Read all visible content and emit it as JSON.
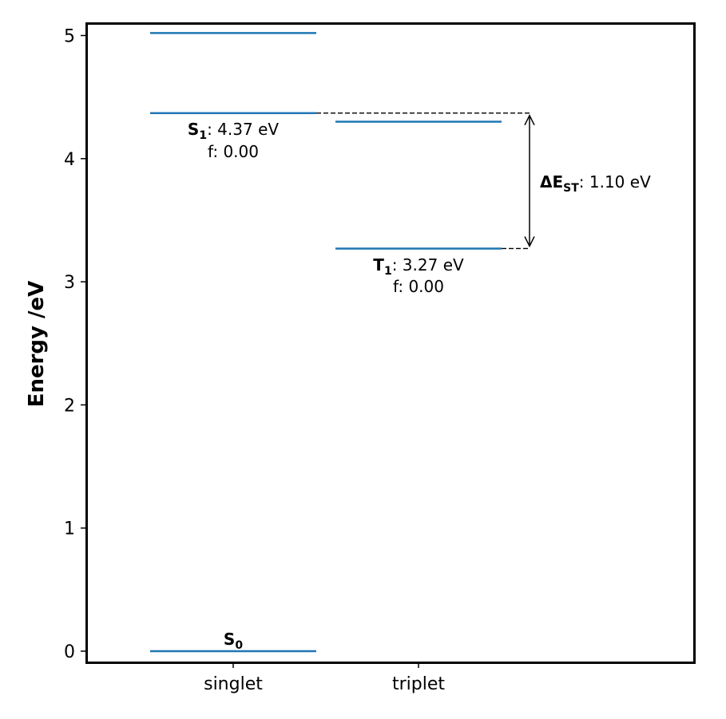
{
  "chart_data": {
    "type": "energy-level-diagram",
    "ylabel": "Energy /eV",
    "xlabel": "",
    "ylim": [
      -0.09,
      5.11
    ],
    "yticks": [
      0,
      1,
      2,
      3,
      4,
      5
    ],
    "categories": [
      "singlet",
      "triplet"
    ],
    "level_color": "#1f77b4",
    "levels": {
      "singlet": [
        0.0,
        4.37,
        5.02
      ],
      "triplet": [
        3.27,
        4.3
      ]
    },
    "ground_state": {
      "label_main": "S",
      "label_sub": "0",
      "value": 0.0
    },
    "s1": {
      "label_main": "S",
      "label_sub": "1",
      "value_text": ": 4.37 eV",
      "osc_text": "f: 0.00",
      "value": 4.37
    },
    "t1": {
      "label_main": "T",
      "label_sub": "1",
      "value_text": ": 3.27 eV",
      "osc_text": "f: 0.00",
      "value": 3.27
    },
    "gap": {
      "label_main": "ΔE",
      "label_sub": "ST",
      "value_text": ": 1.10 eV",
      "value": 1.1
    }
  }
}
